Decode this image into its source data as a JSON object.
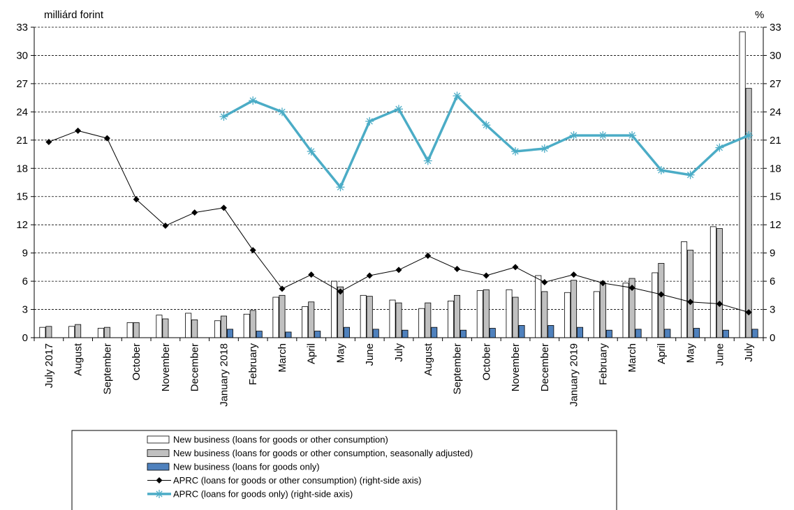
{
  "chart_data": {
    "type": "bar",
    "left_axis_label": "milliárd forint",
    "right_axis_label": "%",
    "ylim": [
      0,
      33
    ],
    "yticks": [
      0,
      3,
      6,
      9,
      12,
      15,
      18,
      21,
      24,
      27,
      30,
      33
    ],
    "grid": "horizontal dashed",
    "legend_placement": "bottom",
    "categories": [
      "July 2017",
      "August",
      "September",
      "October",
      "November",
      "December",
      "January 2018",
      "February",
      "March",
      "April",
      "May",
      "June",
      "July",
      "August",
      "September",
      "October",
      "November",
      "December",
      "January 2019",
      "February",
      "March",
      "April",
      "May",
      "June",
      "July"
    ],
    "series": [
      {
        "name": "New business (loans for goods or other consumption)",
        "kind": "bar",
        "axis": "left",
        "color": "#ffffff",
        "values": [
          1.1,
          1.2,
          1.0,
          1.6,
          2.4,
          2.6,
          1.8,
          2.5,
          4.3,
          3.3,
          6.0,
          4.5,
          4.0,
          3.1,
          3.9,
          5.0,
          5.1,
          6.6,
          4.8,
          4.9,
          5.8,
          6.9,
          10.2,
          11.8,
          32.5
        ]
      },
      {
        "name": "New business (loans for goods or other consumption, seasonally adjusted)",
        "kind": "bar",
        "axis": "left",
        "color": "#c0c0c0",
        "values": [
          1.2,
          1.4,
          1.1,
          1.6,
          2.0,
          1.9,
          2.3,
          2.9,
          4.5,
          3.8,
          5.4,
          4.4,
          3.7,
          3.7,
          4.5,
          5.1,
          4.3,
          4.9,
          6.1,
          5.8,
          6.3,
          7.9,
          9.3,
          11.6,
          26.5
        ]
      },
      {
        "name": "New business (loans for goods only)",
        "kind": "bar",
        "axis": "left",
        "color": "#4f81bd",
        "values": [
          null,
          null,
          null,
          null,
          null,
          null,
          0.9,
          0.7,
          0.6,
          0.7,
          1.1,
          0.9,
          0.8,
          1.1,
          0.8,
          1.0,
          1.3,
          1.3,
          1.1,
          0.8,
          0.9,
          0.9,
          1.0,
          0.8,
          0.9
        ]
      },
      {
        "name": "APRC (loans for goods or other consumption) (right-side axis)",
        "kind": "line",
        "axis": "right",
        "color": "#000000",
        "values": [
          20.8,
          22.0,
          21.2,
          14.7,
          11.9,
          13.3,
          13.8,
          9.3,
          5.2,
          6.7,
          4.9,
          6.6,
          7.2,
          8.7,
          7.3,
          6.6,
          7.5,
          5.9,
          6.7,
          5.8,
          5.3,
          4.6,
          3.8,
          3.6,
          2.7
        ]
      },
      {
        "name": "APRC (loans for goods only) (right-side axis)",
        "kind": "line",
        "axis": "right",
        "color": "#4bacc6",
        "values": [
          null,
          null,
          null,
          null,
          null,
          null,
          23.5,
          25.2,
          24.0,
          19.8,
          16.0,
          23.0,
          24.3,
          18.8,
          25.7,
          22.6,
          19.8,
          20.1,
          21.5,
          21.5,
          21.5,
          17.8,
          17.3,
          20.2,
          21.5
        ]
      }
    ]
  }
}
